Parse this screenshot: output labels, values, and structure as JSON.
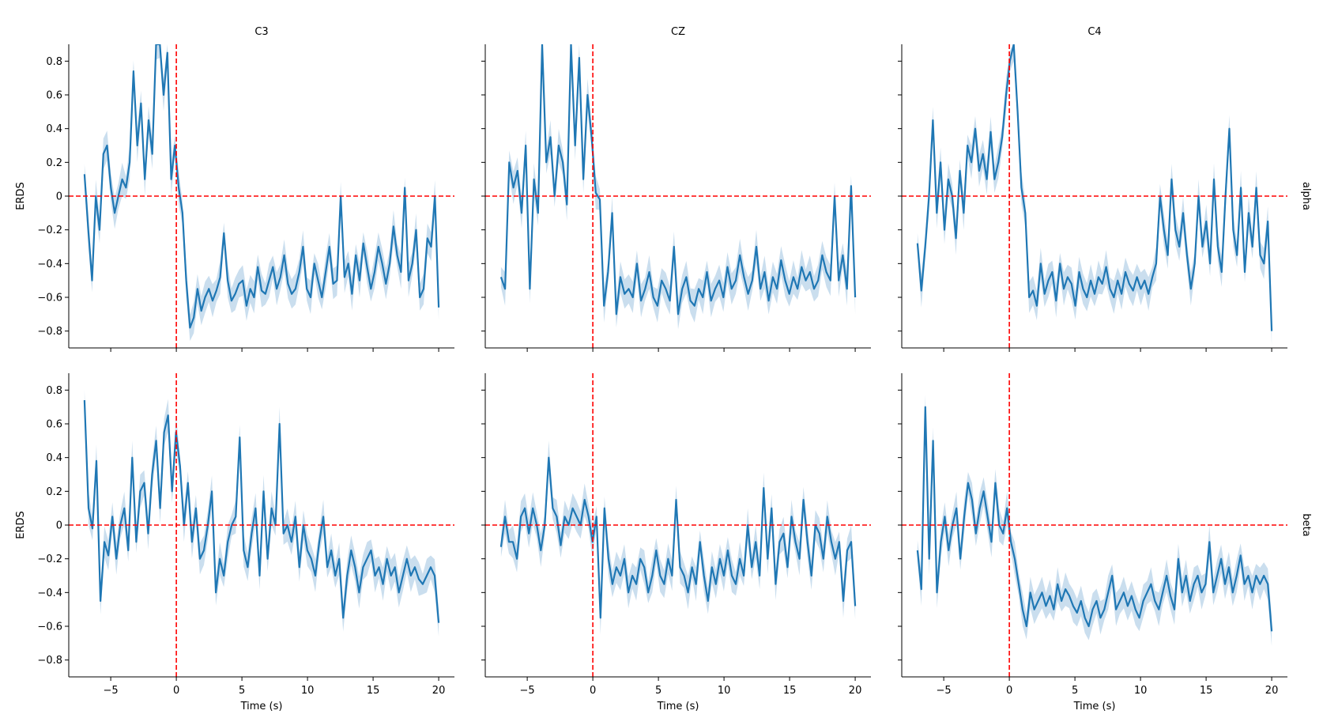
{
  "chart_data": {
    "type": "line",
    "columns": [
      "C3",
      "CZ",
      "C4"
    ],
    "rows": [
      "alpha",
      "beta"
    ],
    "xlabel": "Time (s)",
    "ylabel": "ERDS",
    "xlim": [
      -8.2,
      21.2
    ],
    "ylim": [
      -0.9,
      0.9
    ],
    "xticks": [
      -5,
      0,
      5,
      10,
      15,
      20
    ],
    "yticks": [
      -0.8,
      -0.6,
      -0.4,
      -0.2,
      0.0,
      0.2,
      0.4,
      0.6,
      0.8
    ],
    "x_range": [
      -7,
      20
    ],
    "line_color": "#1f77b4",
    "band_color": "#a6c8e3",
    "ref_line_color": "#ff0000",
    "reference_lines": {
      "x": 0,
      "y": 0
    },
    "panels": [
      {
        "column": "C3",
        "row": "alpha",
        "y": [
          0.13,
          -0.2,
          -0.5,
          0.0,
          -0.2,
          0.25,
          0.3,
          0.05,
          -0.1,
          0.0,
          0.1,
          0.05,
          0.2,
          0.74,
          0.3,
          0.55,
          0.1,
          0.45,
          0.25,
          0.9,
          0.9,
          0.6,
          0.85,
          0.1,
          0.3,
          0.05,
          -0.1,
          -0.5,
          -0.78,
          -0.72,
          -0.55,
          -0.68,
          -0.6,
          -0.55,
          -0.62,
          -0.56,
          -0.48,
          -0.22,
          -0.5,
          -0.62,
          -0.58,
          -0.52,
          -0.5,
          -0.65,
          -0.55,
          -0.6,
          -0.42,
          -0.56,
          -0.58,
          -0.5,
          -0.42,
          -0.55,
          -0.48,
          -0.35,
          -0.52,
          -0.58,
          -0.55,
          -0.45,
          -0.3,
          -0.55,
          -0.6,
          -0.4,
          -0.5,
          -0.6,
          -0.45,
          -0.3,
          -0.52,
          -0.5,
          0.0,
          -0.48,
          -0.4,
          -0.58,
          -0.35,
          -0.5,
          -0.28,
          -0.42,
          -0.55,
          -0.45,
          -0.3,
          -0.4,
          -0.52,
          -0.4,
          -0.18,
          -0.35,
          -0.45,
          0.05,
          -0.5,
          -0.4,
          -0.2,
          -0.6,
          -0.55,
          -0.25,
          -0.3,
          0.0,
          -0.66
        ]
      },
      {
        "column": "CZ",
        "row": "alpha",
        "y": [
          -0.48,
          -0.55,
          0.2,
          0.05,
          0.15,
          -0.1,
          0.3,
          -0.55,
          0.1,
          -0.1,
          0.9,
          0.2,
          0.35,
          0.0,
          0.3,
          0.2,
          -0.05,
          0.9,
          0.3,
          0.82,
          0.1,
          0.6,
          0.35,
          0.02,
          -0.02,
          -0.65,
          -0.45,
          -0.1,
          -0.7,
          -0.48,
          -0.58,
          -0.55,
          -0.6,
          -0.4,
          -0.62,
          -0.55,
          -0.45,
          -0.6,
          -0.65,
          -0.5,
          -0.55,
          -0.62,
          -0.3,
          -0.7,
          -0.55,
          -0.48,
          -0.62,
          -0.65,
          -0.55,
          -0.6,
          -0.45,
          -0.62,
          -0.55,
          -0.5,
          -0.6,
          -0.42,
          -0.55,
          -0.5,
          -0.35,
          -0.48,
          -0.58,
          -0.5,
          -0.3,
          -0.55,
          -0.45,
          -0.62,
          -0.48,
          -0.55,
          -0.38,
          -0.5,
          -0.58,
          -0.48,
          -0.55,
          -0.42,
          -0.5,
          -0.45,
          -0.55,
          -0.5,
          -0.35,
          -0.45,
          -0.5,
          0.0,
          -0.5,
          -0.35,
          -0.55,
          0.06,
          -0.6
        ]
      },
      {
        "column": "C4",
        "row": "alpha",
        "y": [
          -0.28,
          -0.56,
          -0.3,
          0.0,
          0.45,
          -0.1,
          0.2,
          -0.2,
          0.1,
          0.0,
          -0.25,
          0.15,
          -0.1,
          0.3,
          0.2,
          0.4,
          0.15,
          0.25,
          0.1,
          0.38,
          0.1,
          0.2,
          0.35,
          0.6,
          0.8,
          0.9,
          0.5,
          0.05,
          -0.1,
          -0.6,
          -0.56,
          -0.65,
          -0.4,
          -0.58,
          -0.5,
          -0.45,
          -0.62,
          -0.4,
          -0.55,
          -0.48,
          -0.52,
          -0.65,
          -0.45,
          -0.55,
          -0.6,
          -0.5,
          -0.58,
          -0.48,
          -0.52,
          -0.42,
          -0.55,
          -0.6,
          -0.5,
          -0.58,
          -0.45,
          -0.52,
          -0.56,
          -0.48,
          -0.55,
          -0.5,
          -0.58,
          -0.48,
          -0.4,
          0.0,
          -0.2,
          -0.35,
          0.1,
          -0.2,
          -0.3,
          -0.1,
          -0.35,
          -0.55,
          -0.4,
          0.0,
          -0.3,
          -0.15,
          -0.4,
          0.1,
          -0.3,
          -0.45,
          0.0,
          0.4,
          -0.2,
          -0.35,
          0.05,
          -0.45,
          -0.1,
          -0.3,
          0.05,
          -0.35,
          -0.4,
          -0.15,
          -0.8
        ]
      },
      {
        "column": "C3",
        "row": "beta",
        "y": [
          0.74,
          0.1,
          -0.02,
          0.38,
          -0.45,
          -0.1,
          -0.18,
          0.05,
          -0.2,
          0.0,
          0.1,
          -0.15,
          0.4,
          -0.1,
          0.2,
          0.25,
          -0.05,
          0.3,
          0.5,
          0.1,
          0.55,
          0.65,
          0.2,
          0.55,
          0.35,
          0.0,
          0.25,
          -0.1,
          0.1,
          -0.2,
          -0.15,
          0.0,
          0.2,
          -0.4,
          -0.2,
          -0.3,
          -0.1,
          0.0,
          0.05,
          0.52,
          -0.15,
          -0.25,
          -0.05,
          0.1,
          -0.3,
          0.2,
          -0.2,
          0.1,
          0.0,
          0.6,
          -0.05,
          0.0,
          -0.1,
          0.05,
          -0.25,
          0.0,
          -0.15,
          -0.2,
          -0.3,
          -0.1,
          0.05,
          -0.25,
          -0.15,
          -0.3,
          -0.2,
          -0.55,
          -0.3,
          -0.15,
          -0.25,
          -0.4,
          -0.25,
          -0.2,
          -0.15,
          -0.3,
          -0.25,
          -0.35,
          -0.2,
          -0.3,
          -0.25,
          -0.4,
          -0.3,
          -0.2,
          -0.3,
          -0.25,
          -0.32,
          -0.35,
          -0.3,
          -0.25,
          -0.3,
          -0.58
        ]
      },
      {
        "column": "CZ",
        "row": "beta",
        "y": [
          -0.13,
          0.05,
          -0.1,
          -0.1,
          -0.2,
          0.05,
          0.1,
          -0.05,
          0.1,
          0.0,
          -0.15,
          0.0,
          0.4,
          0.1,
          0.05,
          -0.12,
          0.05,
          0.0,
          0.1,
          0.05,
          0.0,
          0.15,
          0.05,
          -0.1,
          0.05,
          -0.55,
          0.1,
          -0.2,
          -0.35,
          -0.25,
          -0.3,
          -0.2,
          -0.4,
          -0.3,
          -0.35,
          -0.2,
          -0.25,
          -0.4,
          -0.3,
          -0.15,
          -0.3,
          -0.35,
          -0.2,
          -0.3,
          0.15,
          -0.25,
          -0.3,
          -0.4,
          -0.25,
          -0.35,
          -0.1,
          -0.3,
          -0.45,
          -0.25,
          -0.35,
          -0.2,
          -0.3,
          -0.15,
          -0.3,
          -0.35,
          -0.2,
          -0.3,
          0.0,
          -0.25,
          -0.1,
          -0.3,
          0.22,
          -0.2,
          0.1,
          -0.35,
          -0.1,
          -0.05,
          -0.25,
          0.05,
          -0.1,
          -0.2,
          0.15,
          -0.1,
          -0.3,
          0.0,
          -0.05,
          -0.2,
          0.05,
          -0.1,
          -0.2,
          -0.1,
          -0.45,
          -0.15,
          -0.1,
          -0.48
        ]
      },
      {
        "column": "C4",
        "row": "beta",
        "y": [
          -0.15,
          -0.38,
          0.7,
          -0.2,
          0.5,
          -0.4,
          -0.1,
          0.05,
          -0.15,
          0.0,
          0.1,
          -0.2,
          0.05,
          0.25,
          0.15,
          -0.05,
          0.1,
          0.2,
          0.05,
          -0.1,
          0.25,
          0.0,
          -0.05,
          0.1,
          -0.1,
          -0.2,
          -0.35,
          -0.5,
          -0.6,
          -0.4,
          -0.5,
          -0.45,
          -0.4,
          -0.48,
          -0.42,
          -0.5,
          -0.35,
          -0.45,
          -0.38,
          -0.42,
          -0.48,
          -0.52,
          -0.45,
          -0.55,
          -0.6,
          -0.5,
          -0.45,
          -0.55,
          -0.5,
          -0.4,
          -0.3,
          -0.5,
          -0.45,
          -0.4,
          -0.48,
          -0.42,
          -0.5,
          -0.55,
          -0.45,
          -0.4,
          -0.35,
          -0.45,
          -0.5,
          -0.4,
          -0.3,
          -0.42,
          -0.5,
          -0.2,
          -0.4,
          -0.3,
          -0.45,
          -0.35,
          -0.3,
          -0.4,
          -0.35,
          -0.1,
          -0.4,
          -0.3,
          -0.2,
          -0.35,
          -0.25,
          -0.4,
          -0.3,
          -0.18,
          -0.35,
          -0.3,
          -0.4,
          -0.3,
          -0.35,
          -0.3,
          -0.35,
          -0.63
        ]
      }
    ]
  }
}
